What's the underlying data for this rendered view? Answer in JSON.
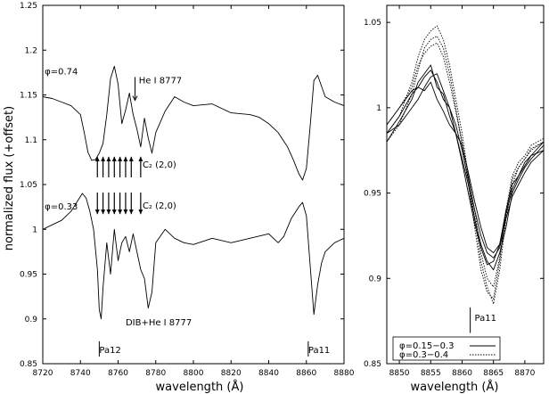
{
  "chart_data": [
    {
      "type": "line",
      "xlabel": "wavelength (Å)",
      "ylabel": "normalized flux (+offset)",
      "xlim": [
        8720,
        8880
      ],
      "ylim": [
        0.85,
        1.25
      ],
      "xticks": [
        8720,
        8740,
        8760,
        8780,
        8800,
        8820,
        8840,
        8860,
        8880
      ],
      "yticks": [
        0.85,
        0.9,
        0.95,
        1,
        1.05,
        1.1,
        1.15,
        1.2,
        1.25
      ],
      "grid": false,
      "series": [
        {
          "name": "φ=0.74",
          "x": [
            8720,
            8725,
            8730,
            8735,
            8740,
            8742,
            8744,
            8746,
            8748,
            8750,
            8752,
            8754,
            8756,
            8758,
            8760,
            8762,
            8764,
            8766,
            8768,
            8770,
            8772,
            8774,
            8776,
            8778,
            8780,
            8785,
            8790,
            8795,
            8800,
            8810,
            8820,
            8830,
            8835,
            8840,
            8845,
            8850,
            8853,
            8856,
            8858,
            8860,
            8862,
            8864,
            8866,
            8870,
            8875,
            8880
          ],
          "y": [
            1.148,
            1.146,
            1.142,
            1.138,
            1.128,
            1.108,
            1.086,
            1.077,
            1.078,
            1.085,
            1.096,
            1.128,
            1.168,
            1.182,
            1.162,
            1.118,
            1.133,
            1.152,
            1.128,
            1.112,
            1.092,
            1.124,
            1.102,
            1.085,
            1.108,
            1.132,
            1.148,
            1.142,
            1.138,
            1.14,
            1.13,
            1.128,
            1.125,
            1.118,
            1.108,
            1.092,
            1.078,
            1.062,
            1.055,
            1.068,
            1.115,
            1.166,
            1.172,
            1.148,
            1.142,
            1.138
          ]
        },
        {
          "name": "φ=0.33",
          "x": [
            8720,
            8725,
            8730,
            8735,
            8738,
            8741,
            8743,
            8745,
            8747,
            8749,
            8750,
            8751,
            8752,
            8754,
            8756,
            8758,
            8760,
            8762,
            8764,
            8766,
            8768,
            8770,
            8772,
            8774,
            8776,
            8778,
            8780,
            8785,
            8790,
            8795,
            8800,
            8810,
            8820,
            8830,
            8840,
            8845,
            8848,
            8852,
            8856,
            8858,
            8860,
            8862,
            8864,
            8866,
            8868,
            8870,
            8875,
            8880
          ],
          "y": [
            1.0,
            1.005,
            1.01,
            1.02,
            1.03,
            1.04,
            1.035,
            1.02,
            1.0,
            0.955,
            0.91,
            0.9,
            0.935,
            0.985,
            0.95,
            1.0,
            0.965,
            0.985,
            0.992,
            0.975,
            0.995,
            0.975,
            0.955,
            0.945,
            0.912,
            0.93,
            0.985,
            1.0,
            0.99,
            0.985,
            0.983,
            0.99,
            0.985,
            0.99,
            0.995,
            0.985,
            0.992,
            1.012,
            1.025,
            1.03,
            1.015,
            0.96,
            0.905,
            0.938,
            0.962,
            0.975,
            0.985,
            0.99
          ]
        }
      ],
      "annotations": [
        {
          "text": "φ=0.74",
          "x": 8721,
          "y": 1.173
        },
        {
          "text": "He I 8777",
          "x": 8771,
          "y": 1.163
        },
        {
          "text": "C₂ (2,0)",
          "x": 8773,
          "y": 1.069
        },
        {
          "text": "φ=0.33",
          "x": 8721,
          "y": 1.022
        },
        {
          "text": "C₂ (2,0)",
          "x": 8773,
          "y": 1.023
        },
        {
          "text": "DIB+He I 8777",
          "x": 8764,
          "y": 0.893
        },
        {
          "text": "Pa12",
          "x": 8750,
          "y": 0.862
        },
        {
          "text": "Pa11",
          "x": 8861,
          "y": 0.862
        }
      ],
      "c2_arrow_wavelengths": [
        8749,
        8752,
        8755,
        8758,
        8761,
        8764,
        8767,
        8772
      ]
    },
    {
      "type": "line",
      "xlabel": "wavelength (Å)",
      "xlim": [
        8848,
        8873
      ],
      "ylim": [
        0.85,
        1.06
      ],
      "xticks": [
        8850,
        8855,
        8860,
        8865,
        8870
      ],
      "yticks": [
        0.85,
        0.9,
        0.95,
        1,
        1.05
      ],
      "grid": false,
      "legend_position": "bottom-left",
      "legend": [
        {
          "label": "φ=0.15−0.3",
          "style": "solid"
        },
        {
          "label": "φ=0.3−0.4",
          "style": "dotted"
        }
      ],
      "series": [
        {
          "group": "φ=0.15−0.3",
          "style": "solid",
          "x": [
            8848,
            8850,
            8852,
            8853,
            8854,
            8855,
            8856,
            8857,
            8858,
            8859,
            8860,
            8861,
            8862,
            8863,
            8864,
            8865,
            8866,
            8867,
            8868,
            8869,
            8870,
            8871,
            8873
          ],
          "y": [
            0.985,
            0.995,
            1.008,
            1.012,
            1.018,
            1.022,
            1.015,
            1.005,
            1.0,
            0.99,
            0.975,
            0.958,
            0.94,
            0.925,
            0.915,
            0.912,
            0.918,
            0.935,
            0.948,
            0.955,
            0.962,
            0.968,
            0.975
          ]
        },
        {
          "group": "φ=0.15−0.3",
          "style": "solid",
          "x": [
            8848,
            8850,
            8852,
            8853,
            8854,
            8855,
            8856,
            8857,
            8858,
            8859,
            8860,
            8861,
            8862,
            8863,
            8864,
            8865,
            8866,
            8867,
            8868,
            8869,
            8870,
            8871,
            8873
          ],
          "y": [
            0.98,
            0.992,
            1.005,
            1.015,
            1.02,
            1.025,
            1.012,
            1.008,
            0.995,
            0.985,
            0.97,
            0.955,
            0.935,
            0.92,
            0.91,
            0.905,
            0.915,
            0.93,
            0.95,
            0.958,
            0.965,
            0.97,
            0.978
          ]
        },
        {
          "group": "φ=0.15−0.3",
          "style": "solid",
          "x": [
            8848,
            8850,
            8852,
            8853,
            8854,
            8855,
            8856,
            8857,
            8858,
            8859,
            8860,
            8861,
            8862,
            8863,
            8864,
            8865,
            8866,
            8867,
            8868,
            8869,
            8870,
            8871,
            8873
          ],
          "y": [
            0.99,
            1.0,
            1.01,
            1.012,
            1.01,
            1.015,
            1.005,
            0.998,
            0.99,
            0.985,
            0.978,
            0.962,
            0.945,
            0.93,
            0.918,
            0.915,
            0.92,
            0.94,
            0.955,
            0.96,
            0.968,
            0.972,
            0.98
          ]
        },
        {
          "group": "φ=0.15−0.3",
          "style": "solid",
          "x": [
            8848,
            8850,
            8852,
            8853,
            8854,
            8855,
            8856,
            8857,
            8858,
            8859,
            8860,
            8861,
            8862,
            8863,
            8864,
            8865,
            8866,
            8867,
            8868,
            8869,
            8870,
            8871,
            8873
          ],
          "y": [
            0.985,
            0.99,
            1.0,
            1.005,
            1.012,
            1.018,
            1.02,
            1.01,
            1.0,
            0.985,
            0.968,
            0.95,
            0.932,
            0.918,
            0.908,
            0.91,
            0.92,
            0.938,
            0.952,
            0.96,
            0.966,
            0.972,
            0.975
          ]
        },
        {
          "group": "φ=0.3−0.4",
          "style": "dotted",
          "x": [
            8848,
            8850,
            8852,
            8853,
            8854,
            8855,
            8856,
            8857,
            8858,
            8859,
            8860,
            8861,
            8862,
            8863,
            8864,
            8865,
            8866,
            8867,
            8868,
            8869,
            8870,
            8871,
            8873
          ],
          "y": [
            0.985,
            0.995,
            1.015,
            1.03,
            1.04,
            1.045,
            1.048,
            1.04,
            1.025,
            1.005,
            0.985,
            0.96,
            0.935,
            0.91,
            0.895,
            0.885,
            0.905,
            0.935,
            0.955,
            0.965,
            0.97,
            0.975,
            0.98
          ]
        },
        {
          "group": "φ=0.3−0.4",
          "style": "dotted",
          "x": [
            8848,
            8850,
            8852,
            8853,
            8854,
            8855,
            8856,
            8857,
            8858,
            8859,
            8860,
            8861,
            8862,
            8863,
            8864,
            8865,
            8866,
            8867,
            8868,
            8869,
            8870,
            8871,
            8873
          ],
          "y": [
            0.98,
            0.99,
            1.008,
            1.022,
            1.035,
            1.04,
            1.042,
            1.035,
            1.02,
            1.0,
            0.978,
            0.955,
            0.93,
            0.905,
            0.892,
            0.888,
            0.91,
            0.94,
            0.96,
            0.968,
            0.972,
            0.978,
            0.982
          ]
        },
        {
          "group": "φ=0.3−0.4",
          "style": "dotted",
          "x": [
            8848,
            8850,
            8852,
            8853,
            8854,
            8855,
            8856,
            8857,
            8858,
            8859,
            8860,
            8861,
            8862,
            8863,
            8864,
            8865,
            8866,
            8867,
            8868,
            8869,
            8870,
            8871,
            8873
          ],
          "y": [
            0.99,
            1.0,
            1.012,
            1.025,
            1.032,
            1.036,
            1.038,
            1.03,
            1.015,
            0.998,
            0.98,
            0.96,
            0.94,
            0.915,
            0.9,
            0.895,
            0.912,
            0.938,
            0.958,
            0.965,
            0.97,
            0.976,
            0.98
          ]
        }
      ],
      "annotations": [
        {
          "text": "Pa11",
          "x": 8862,
          "y": 0.875
        }
      ]
    }
  ]
}
